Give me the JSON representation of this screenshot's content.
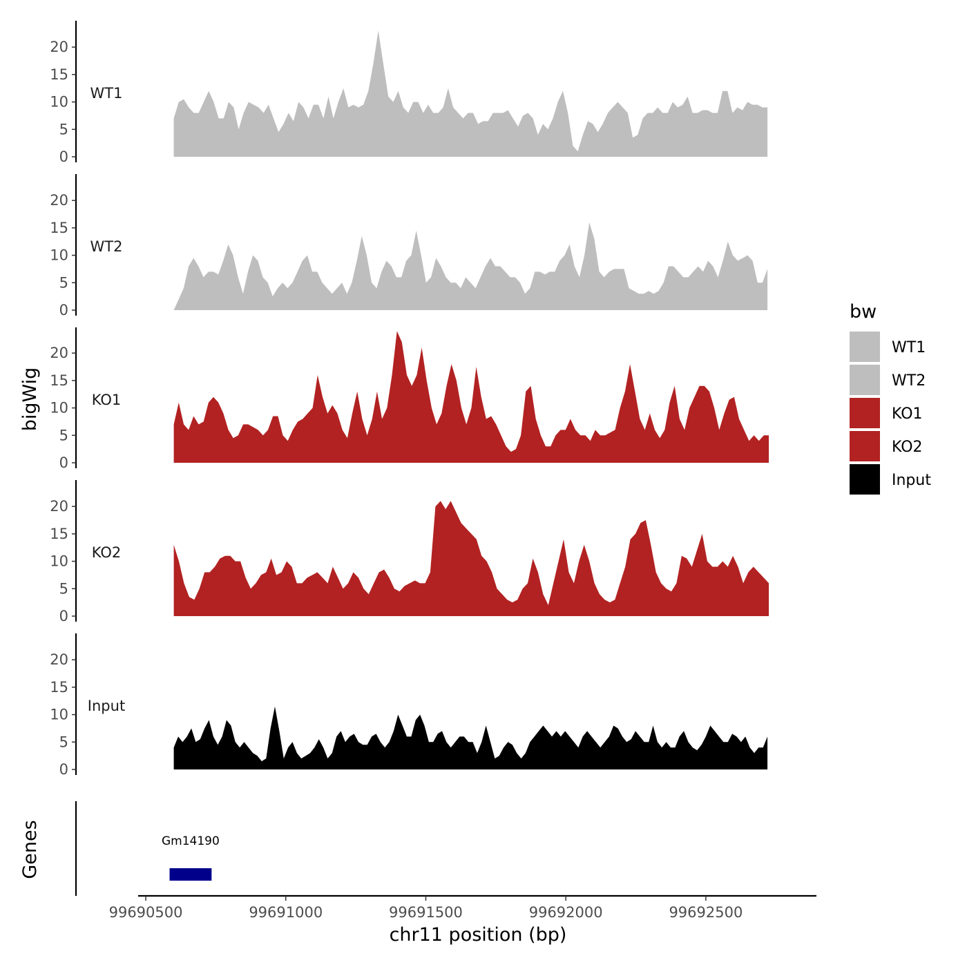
{
  "chart_data": {
    "type": "area",
    "xlabel": "chr11 position (bp)",
    "ylabel": "bigWig",
    "genes_label": "Genes",
    "x_ticks": [
      99690500,
      99691000,
      99691500,
      99692000,
      99692500
    ],
    "x_tick_labels": [
      "99690500",
      "99691000",
      "99691500",
      "99692000",
      "99692500"
    ],
    "xlim": [
      99690490,
      99692890
    ],
    "ylim": [
      0,
      25
    ],
    "y_ticks": [
      0,
      5,
      10,
      15,
      20
    ],
    "y_tick_labels": [
      "0",
      "5",
      "10",
      "15",
      "20"
    ],
    "legend": {
      "title": "bw",
      "entries": [
        {
          "label": "WT1",
          "color": "#bebebe"
        },
        {
          "label": "WT2",
          "color": "#bebebe"
        },
        {
          "label": "KO1",
          "color": "#b22222"
        },
        {
          "label": "KO2",
          "color": "#b22222"
        },
        {
          "label": "Input",
          "color": "#000000"
        }
      ]
    },
    "tracks": [
      {
        "name": "WT1",
        "color": "#bebebe",
        "x_start": 99690600,
        "x_end": 99692720,
        "values": [
          7,
          10,
          10.5,
          9,
          8,
          8,
          10,
          12,
          10,
          7,
          7,
          10,
          9,
          5,
          8,
          10,
          9.5,
          9,
          8,
          9.5,
          7,
          4.5,
          6,
          8,
          6.5,
          10,
          9,
          7,
          9.5,
          9.5,
          7,
          11,
          7,
          10,
          12.5,
          9,
          9.5,
          9,
          9.5,
          12,
          17,
          23,
          17,
          11,
          10,
          12,
          9,
          8,
          10,
          10,
          8,
          9.5,
          8,
          8,
          9,
          12.5,
          9,
          8,
          7,
          8,
          8,
          6,
          6.5,
          6.5,
          8,
          8,
          8,
          8.5,
          7,
          5.5,
          7.5,
          8,
          7,
          4,
          6,
          5,
          7,
          10,
          12,
          8,
          2,
          1,
          4,
          6.5,
          6,
          4.5,
          6,
          8,
          9,
          10,
          9,
          8,
          3.5,
          4,
          7,
          8,
          8,
          9,
          8,
          8,
          10,
          9,
          9.5,
          11,
          8,
          8,
          8.5,
          8.5,
          8,
          8,
          12,
          12,
          8,
          9,
          8.5,
          10,
          9.5,
          9.5,
          9,
          9
        ]
      },
      {
        "name": "WT2",
        "color": "#bebebe",
        "x_start": 99690600,
        "x_end": 99692720,
        "values": [
          0,
          2,
          4,
          8,
          9.5,
          8,
          6,
          7,
          7,
          6.5,
          9,
          12,
          10,
          6,
          3,
          7,
          10,
          9,
          6,
          5,
          2.5,
          4,
          5,
          4,
          5,
          7,
          9,
          10,
          7,
          7,
          5,
          4,
          3,
          4,
          5,
          3,
          5,
          9,
          13.5,
          10,
          5,
          4,
          7,
          9,
          8,
          6,
          6,
          9,
          10,
          14.5,
          10,
          5,
          6,
          9.5,
          8,
          6,
          5,
          5,
          4,
          6,
          5,
          4,
          6,
          8,
          9.5,
          8,
          8,
          7,
          6,
          6,
          5,
          3,
          4,
          7,
          7,
          6.5,
          7,
          7,
          9,
          10,
          12,
          8,
          6,
          10,
          16,
          13,
          7,
          6,
          7,
          7.5,
          7.5,
          7.5,
          4,
          3.5,
          3,
          3,
          3.5,
          3,
          3.5,
          5,
          8,
          8,
          7,
          6,
          6,
          7,
          8,
          7,
          9,
          8,
          6,
          9,
          12.5,
          10,
          9,
          9.5,
          10,
          9,
          5,
          5,
          7.5
        ]
      },
      {
        "name": "KO1",
        "color": "#b22222",
        "x_start": 99690600,
        "x_end": 99692725,
        "values": [
          7,
          11,
          7,
          6,
          8.5,
          7,
          7.5,
          11,
          12,
          11,
          9,
          6,
          4.5,
          5,
          7,
          7,
          6.5,
          6,
          5,
          6,
          8.5,
          8.5,
          5,
          4,
          6,
          7.5,
          8,
          9,
          10,
          16,
          12,
          9,
          10.5,
          9,
          6,
          4.5,
          9,
          13,
          8,
          5,
          8,
          13,
          8,
          10,
          16,
          24,
          22,
          16,
          14,
          16,
          21,
          15,
          10,
          7,
          9,
          14,
          18,
          15,
          10,
          7,
          10,
          17.5,
          12,
          8,
          8.5,
          7,
          5,
          3,
          2,
          2.5,
          5,
          13,
          14,
          8,
          5,
          3,
          3,
          5,
          6,
          6,
          8,
          6,
          5,
          5,
          4,
          6,
          5,
          5,
          5.5,
          6,
          10,
          13,
          18,
          13,
          8,
          6,
          9,
          6,
          4.5,
          6,
          11,
          14,
          8,
          6,
          10,
          12,
          14,
          14,
          13,
          10,
          6,
          9,
          11.5,
          12,
          8,
          6,
          4,
          5,
          4,
          5,
          5
        ]
      },
      {
        "name": "KO2",
        "color": "#b22222",
        "x_start": 99690600,
        "x_end": 99692725,
        "values": [
          13,
          10,
          6,
          3.5,
          3,
          5,
          8,
          8,
          9,
          10.5,
          11,
          11,
          10,
          10,
          7,
          5,
          6,
          7.5,
          8,
          10.5,
          7.5,
          8,
          10,
          9,
          6,
          6,
          7,
          7.5,
          8,
          7,
          6,
          9,
          7,
          5,
          6,
          8,
          7,
          5,
          4,
          6,
          8,
          8.5,
          7,
          5,
          4.5,
          5.5,
          6,
          6.5,
          6,
          6,
          8,
          20,
          21,
          19.5,
          21,
          19,
          17,
          16,
          15,
          14,
          11,
          10,
          8,
          5,
          4,
          3,
          2.5,
          3,
          5,
          6,
          10.5,
          8,
          4,
          2,
          6,
          10,
          14,
          8,
          6,
          10,
          13,
          10,
          6,
          4,
          3,
          2.5,
          3,
          6,
          9,
          14,
          15,
          17,
          17.5,
          13,
          8,
          6,
          5,
          4.5,
          6,
          11,
          10.5,
          9,
          12,
          15,
          10,
          9,
          9,
          10,
          9,
          11,
          9,
          6,
          8,
          9,
          8,
          7,
          6
        ]
      },
      {
        "name": "Input",
        "color": "#000000",
        "x_start": 99690600,
        "x_end": 99692720,
        "values": [
          4,
          6,
          5,
          6,
          7.5,
          5,
          5.5,
          7.5,
          9,
          6,
          4.5,
          6,
          9,
          8,
          5,
          4,
          5,
          4,
          3,
          2.5,
          1.5,
          2,
          7.5,
          11.5,
          7,
          2,
          4,
          5,
          3,
          2,
          2.5,
          3,
          4,
          5.5,
          4,
          2,
          3,
          6,
          7,
          5,
          6,
          6.5,
          5,
          4.5,
          4.5,
          6,
          6.5,
          5,
          4,
          5,
          7,
          10,
          8,
          6,
          6,
          9,
          10,
          8,
          5,
          5,
          6.5,
          7,
          5,
          4,
          5,
          6,
          6,
          5,
          5,
          3,
          5,
          8,
          5,
          2,
          2.5,
          4,
          5,
          4.5,
          3,
          2,
          3,
          5,
          6,
          7,
          8,
          7,
          6,
          7,
          6,
          7,
          6,
          5,
          4,
          6,
          7,
          6,
          5,
          4,
          5,
          6,
          8,
          7.5,
          6,
          5,
          5.5,
          7,
          6,
          5,
          5,
          8,
          5,
          4,
          5,
          4,
          4,
          6,
          7,
          5,
          4,
          3.5,
          4.5,
          6,
          8,
          7,
          6,
          5,
          5,
          6.5,
          6,
          5,
          6,
          4,
          3,
          4,
          4,
          6
        ]
      }
    ],
    "genes": [
      {
        "name": "Gm14190",
        "start": 99690585,
        "end": 99690735,
        "color": "#00008b"
      }
    ]
  }
}
